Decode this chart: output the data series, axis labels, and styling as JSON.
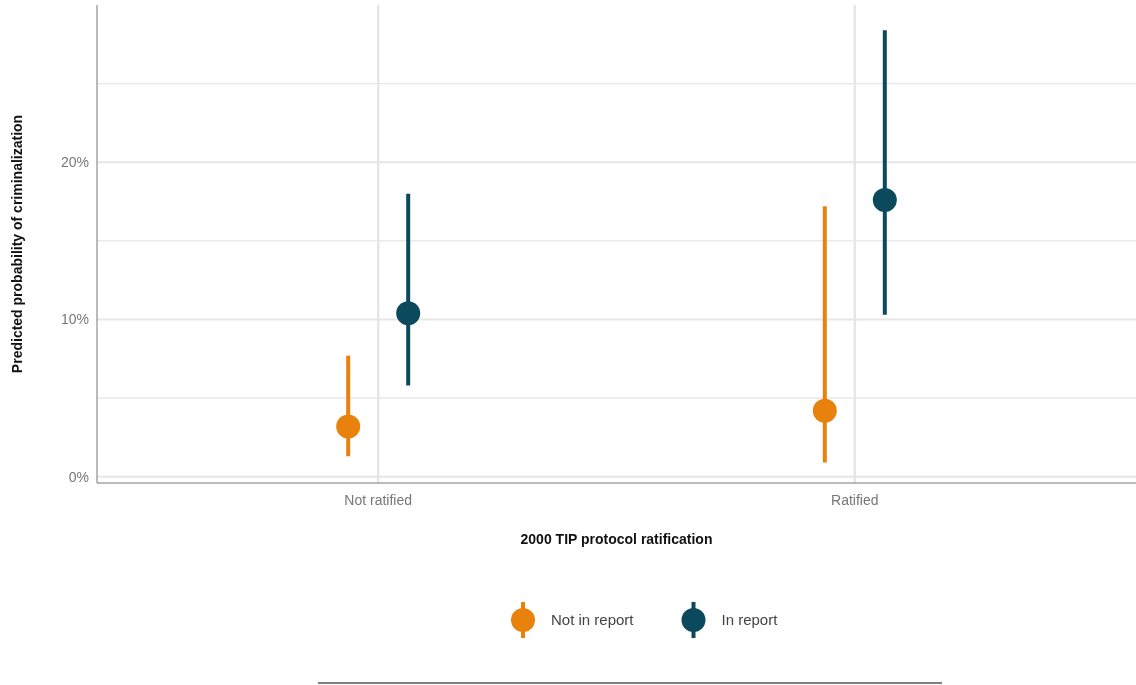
{
  "chart_data": {
    "type": "scatter",
    "xlabel": "2000 TIP protocol ratification",
    "ylabel": "Predicted probability of criminalization",
    "categories": [
      "Not ratified",
      "Ratified"
    ],
    "series": [
      {
        "name": "Not in report",
        "color": "#e8820c",
        "values": [
          3.2,
          4.2
        ],
        "errors": [
          [
            1.3,
            7.7
          ],
          [
            0.9,
            17.2
          ]
        ]
      },
      {
        "name": "In report",
        "color": "#0a4a5c",
        "values": [
          10.4,
          17.6
        ],
        "errors": [
          [
            5.8,
            18.0
          ],
          [
            10.3,
            28.4
          ]
        ]
      }
    ],
    "ylim": [
      -0.4,
      30
    ],
    "yticks": [
      {
        "value": 0,
        "label": "0%"
      },
      {
        "value": 5,
        "label": null
      },
      {
        "value": 10,
        "label": "10%"
      },
      {
        "value": 15,
        "label": null
      },
      {
        "value": 20,
        "label": "20%"
      },
      {
        "value": 25,
        "label": null
      }
    ],
    "grid": true,
    "legend": "bottom",
    "marker": "circle"
  }
}
